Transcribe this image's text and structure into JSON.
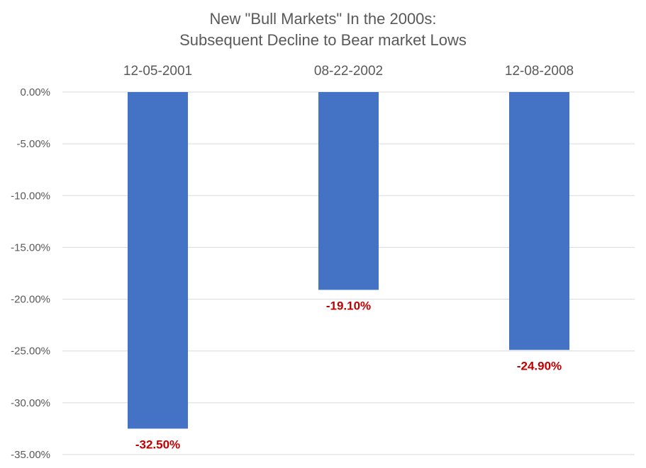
{
  "chart_data": {
    "type": "bar",
    "title": "New \"Bull Markets\" In the 2000s:",
    "subtitle": "Subsequent Decline to Bear market Lows",
    "categories": [
      "12-05-2001",
      "08-22-2002",
      "12-08-2008"
    ],
    "values": [
      -32.5,
      -19.1,
      -24.9
    ],
    "data_labels": [
      "-32.50%",
      "-19.10%",
      "-24.90%"
    ],
    "y_ticks": [
      "0.00%",
      "-5.00%",
      "-10.00%",
      "-15.00%",
      "-20.00%",
      "-25.00%",
      "-30.00%",
      "-35.00%"
    ],
    "ylim": [
      -35,
      0
    ],
    "xlabel": "",
    "ylabel": "",
    "grid": true,
    "legend": "none",
    "colors": {
      "bar": "#4472c4",
      "data_label": "#c00000",
      "gridline": "#d9d9d9",
      "text": "#595959"
    }
  }
}
